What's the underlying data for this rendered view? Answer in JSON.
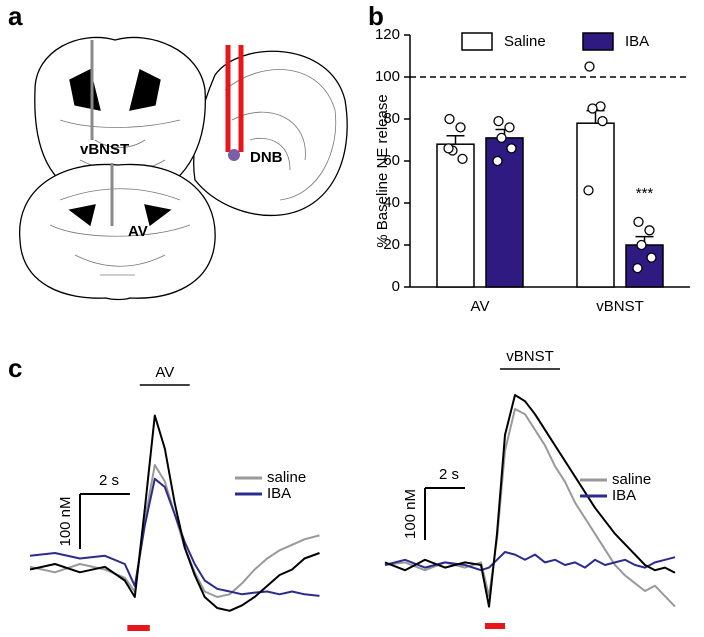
{
  "panel_labels": [
    "a",
    "b",
    "c"
  ],
  "atlas_labels": [
    "vBNST",
    "AV",
    "DNB"
  ],
  "chart_data": [
    {
      "type": "bar",
      "ylabel": "% Baseline NE release",
      "categories": [
        "AV",
        "vBNST"
      ],
      "series": [
        {
          "name": "Saline",
          "color": "#ffffff",
          "values": [
            68,
            78
          ],
          "errors": [
            4,
            6
          ],
          "points": [
            [
              80,
              76,
              65,
              61,
              66
            ],
            [
              105,
              86,
              85,
              79,
              46
            ]
          ]
        },
        {
          "name": "IBA",
          "color": "#2e1a80",
          "values": [
            71,
            20
          ],
          "errors": [
            4,
            4
          ],
          "points": [
            [
              79,
              76,
              71,
              66,
              60
            ],
            [
              31,
              27,
              20,
              14,
              9
            ]
          ]
        }
      ],
      "ylim": [
        0,
        120
      ],
      "yticks": [
        0,
        20,
        40,
        60,
        80,
        100,
        120
      ],
      "reference_line": 100,
      "annotations": [
        {
          "text": "***",
          "category": 1,
          "series": 1
        }
      ]
    },
    {
      "type": "line",
      "title": "AV",
      "title_span": [
        4.4,
        6.4
      ],
      "stimulus": [
        3.9,
        4.8
      ],
      "stimulus_color": "#e8161b",
      "x": [
        0,
        1,
        2,
        3,
        3.8,
        4.2,
        4.6,
        5.0,
        5.4,
        5.8,
        6.2,
        6.6,
        7,
        7.5,
        8,
        8.5,
        9,
        9.5,
        10,
        10.5,
        11,
        11.6
      ],
      "xlim": [
        0,
        11.7
      ],
      "ylim": [
        -80,
        320
      ],
      "series": [
        {
          "name": "saline",
          "color": "#999999",
          "values": [
            15,
            5,
            20,
            10,
            -5,
            -30,
            100,
            200,
            170,
            110,
            50,
            5,
            -30,
            -40,
            -35,
            -15,
            10,
            30,
            45,
            55,
            65,
            72
          ]
        },
        {
          "name": "IBA",
          "color": "#2b2b8f",
          "values": [
            35,
            40,
            30,
            35,
            20,
            -20,
            90,
            175,
            160,
            110,
            60,
            20,
            -10,
            -25,
            -30,
            -35,
            -32,
            -30,
            -35,
            -30,
            -35,
            -38
          ]
        },
        {
          "color": "#000000",
          "values": [
            10,
            20,
            5,
            15,
            -10,
            -40,
            120,
            290,
            230,
            130,
            50,
            0,
            -40,
            -60,
            -65,
            -55,
            -40,
            -20,
            0,
            10,
            30,
            40
          ]
        }
      ],
      "scale_bars": {
        "x": {
          "value": 2,
          "label": "2 s"
        },
        "y": {
          "value": 100,
          "label": "100 nM"
        }
      }
    },
    {
      "type": "line",
      "title": "vBNST",
      "title_span": [
        5.75,
        8.75
      ],
      "stimulus": [
        5.0,
        6.0
      ],
      "stimulus_color": "#e8161b",
      "x": [
        0,
        1,
        2,
        3,
        4,
        4.8,
        5.2,
        5.6,
        6,
        6.5,
        7,
        7.5,
        8,
        8.5,
        9,
        9.5,
        10,
        10.5,
        11,
        11.5,
        12,
        12.5,
        13,
        13.5,
        14,
        14.5
      ],
      "xlim": [
        0,
        14.5
      ],
      "ylim": [
        -100,
        350
      ],
      "series": [
        {
          "name": "saline",
          "color": "#999999",
          "values": [
            0,
            5,
            -10,
            5,
            -5,
            5,
            -60,
            50,
            220,
            300,
            290,
            260,
            230,
            190,
            160,
            120,
            90,
            60,
            30,
            0,
            -20,
            -35,
            -50,
            -40,
            -60,
            -80
          ]
        },
        {
          "name": "IBA",
          "color": "#2b2b8f",
          "values": [
            0,
            10,
            -5,
            5,
            0,
            -10,
            -5,
            10,
            25,
            20,
            10,
            20,
            5,
            10,
            0,
            5,
            -5,
            10,
            0,
            5,
            10,
            0,
            -5,
            5,
            10,
            15
          ]
        },
        {
          "color": "#000000",
          "values": [
            5,
            -10,
            10,
            -5,
            5,
            0,
            -80,
            60,
            250,
            327,
            315,
            290,
            260,
            230,
            200,
            170,
            140,
            110,
            85,
            60,
            40,
            20,
            0,
            -10,
            -5,
            -15
          ]
        }
      ],
      "scale_bars": {
        "x": {
          "value": 2,
          "label": "2 s"
        },
        "y": {
          "value": 100,
          "label": "100 nM"
        }
      }
    }
  ]
}
